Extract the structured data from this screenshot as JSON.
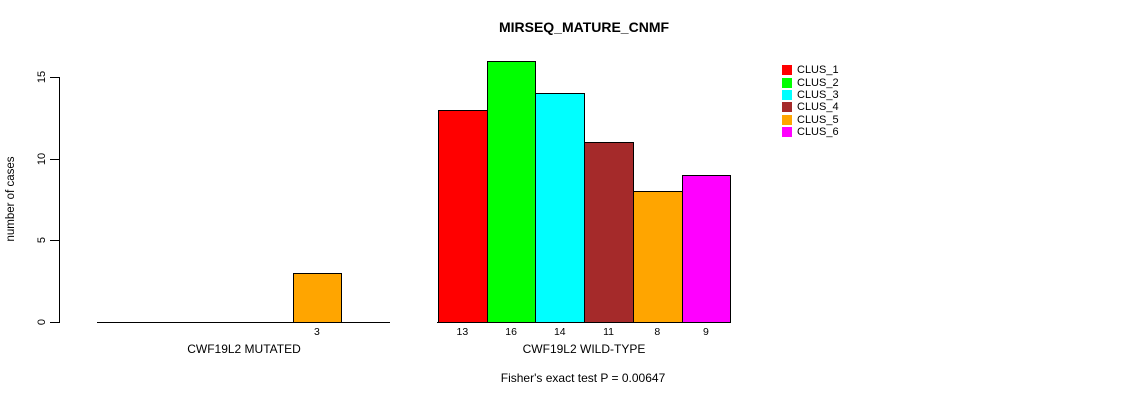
{
  "chart_data": {
    "type": "bar",
    "title": "MIRSEQ_MATURE_CNMF",
    "ylabel": "number of cases",
    "xlabel": "",
    "yticks": [
      0,
      5,
      10,
      15
    ],
    "ylim": [
      0,
      16
    ],
    "grid": false,
    "legend_position": "right",
    "categories": [
      "CWF19L2 MUTATED",
      "CWF19L2 WILD-TYPE"
    ],
    "series": [
      {
        "name": "CLUS_1",
        "color": "#FF0000",
        "values": [
          0,
          13
        ]
      },
      {
        "name": "CLUS_2",
        "color": "#00FF00",
        "values": [
          0,
          16
        ]
      },
      {
        "name": "CLUS_3",
        "color": "#00FFFF",
        "values": [
          0,
          14
        ]
      },
      {
        "name": "CLUS_4",
        "color": "#A52A2A",
        "values": [
          0,
          11
        ]
      },
      {
        "name": "CLUS_5",
        "color": "#FFA500",
        "values": [
          3,
          8
        ]
      },
      {
        "name": "CLUS_6",
        "color": "#FF00FF",
        "values": [
          0,
          9
        ]
      }
    ],
    "bar_labels": {
      "group_1_shown": [
        "3"
      ],
      "group_2_shown": [
        "13",
        "16",
        "14",
        "11",
        "8",
        "9"
      ]
    },
    "annotation": "Fisher's exact test P = 0.00647"
  }
}
